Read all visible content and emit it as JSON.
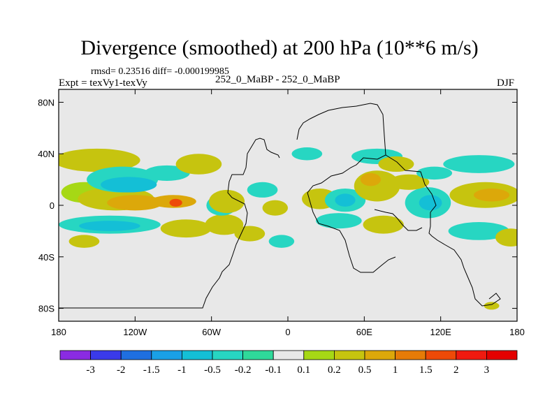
{
  "chart_data": {
    "type": "heatmap",
    "title": "Divergence (smoothed) at 200 hPa (10**6 m/s)",
    "stats_line": "rmsd= 0.23516 diff= -0.000199985",
    "experiment_label": "Expt = texVy1-texVy",
    "case_label": "252_0_MaBP - 252_0_MaBP",
    "season": "DJF",
    "xlim": [
      -180,
      180
    ],
    "ylim": [
      -90,
      90
    ],
    "x_ticks": [
      {
        "value": -180,
        "label": "180"
      },
      {
        "value": -120,
        "label": "120W"
      },
      {
        "value": -60,
        "label": "60W"
      },
      {
        "value": 0,
        "label": "0"
      },
      {
        "value": 60,
        "label": "60E"
      },
      {
        "value": 120,
        "label": "120E"
      },
      {
        "value": 180,
        "label": "180"
      }
    ],
    "y_ticks": [
      {
        "value": 80,
        "label": "80N"
      },
      {
        "value": 40,
        "label": "40N"
      },
      {
        "value": 0,
        "label": "0"
      },
      {
        "value": -40,
        "label": "40S"
      },
      {
        "value": -80,
        "label": "80S"
      }
    ],
    "levels": [
      "-3",
      "-2",
      "-1.5",
      "-1",
      "-0.5",
      "-0.2",
      "-0.1",
      "0.1",
      "0.2",
      "0.5",
      "1",
      "1.5",
      "2",
      "3"
    ],
    "colors": [
      "#8a2be2",
      "#3a3aea",
      "#1f6fe0",
      "#1aa0e6",
      "#14bfd6",
      "#27d6c2",
      "#2fd99a",
      "#e8e8e8",
      "#a6d815",
      "#c6c40f",
      "#dca80a",
      "#e67b07",
      "#ee4a08",
      "#f01a10",
      "#e40000"
    ],
    "background_color": "#e8e8e8",
    "anomalies": [
      {
        "lon": -160,
        "lat": 10,
        "rx": 18,
        "ry": 8,
        "value": 0.15
      },
      {
        "lon": -135,
        "lat": 5,
        "rx": 30,
        "ry": 9,
        "value": 0.3
      },
      {
        "lon": -120,
        "lat": 2,
        "rx": 22,
        "ry": 6,
        "value": 0.6
      },
      {
        "lon": -90,
        "lat": 3,
        "rx": 18,
        "ry": 5,
        "value": 0.7
      },
      {
        "lon": -88,
        "lat": 2,
        "rx": 5,
        "ry": 3,
        "value": 1.6
      },
      {
        "lon": -150,
        "lat": 35,
        "rx": 34,
        "ry": 9,
        "value": 0.3
      },
      {
        "lon": -130,
        "lat": 20,
        "rx": 28,
        "ry": 10,
        "value": -0.25
      },
      {
        "lon": -125,
        "lat": 16,
        "rx": 22,
        "ry": 6,
        "value": -0.55
      },
      {
        "lon": -95,
        "lat": 25,
        "rx": 18,
        "ry": 6,
        "value": -0.3
      },
      {
        "lon": -70,
        "lat": 32,
        "rx": 18,
        "ry": 8,
        "value": 0.3
      },
      {
        "lon": -140,
        "lat": -15,
        "rx": 40,
        "ry": 7,
        "value": -0.3
      },
      {
        "lon": -140,
        "lat": -16,
        "rx": 24,
        "ry": 4,
        "value": -0.6
      },
      {
        "lon": -160,
        "lat": -28,
        "rx": 12,
        "ry": 5,
        "value": 0.2
      },
      {
        "lon": -80,
        "lat": -18,
        "rx": 20,
        "ry": 7,
        "value": 0.25
      },
      {
        "lon": -50,
        "lat": -15,
        "rx": 15,
        "ry": 8,
        "value": 0.3
      },
      {
        "lon": -52,
        "lat": 0,
        "rx": 12,
        "ry": 8,
        "value": -0.3
      },
      {
        "lon": -52,
        "lat": 0,
        "rx": 6,
        "ry": 4,
        "value": -0.7
      },
      {
        "lon": -48,
        "lat": 3,
        "rx": 14,
        "ry": 9,
        "value": 0.2
      },
      {
        "lon": -20,
        "lat": 12,
        "rx": 12,
        "ry": 6,
        "value": -0.25
      },
      {
        "lon": -10,
        "lat": -2,
        "rx": 10,
        "ry": 6,
        "value": 0.3
      },
      {
        "lon": -30,
        "lat": -22,
        "rx": 12,
        "ry": 6,
        "value": 0.25
      },
      {
        "lon": -5,
        "lat": -28,
        "rx": 10,
        "ry": 5,
        "value": -0.25
      },
      {
        "lon": 15,
        "lat": 40,
        "rx": 12,
        "ry": 5,
        "value": -0.25
      },
      {
        "lon": 25,
        "lat": 5,
        "rx": 14,
        "ry": 8,
        "value": 0.35
      },
      {
        "lon": 45,
        "lat": 4,
        "rx": 16,
        "ry": 9,
        "value": -0.3
      },
      {
        "lon": 45,
        "lat": 4,
        "rx": 8,
        "ry": 5,
        "value": -0.7
      },
      {
        "lon": 40,
        "lat": -12,
        "rx": 18,
        "ry": 6,
        "value": -0.35
      },
      {
        "lon": 70,
        "lat": 15,
        "rx": 18,
        "ry": 12,
        "value": 0.3
      },
      {
        "lon": 65,
        "lat": 20,
        "rx": 8,
        "ry": 5,
        "value": 0.8
      },
      {
        "lon": 70,
        "lat": 38,
        "rx": 20,
        "ry": 6,
        "value": -0.25
      },
      {
        "lon": 75,
        "lat": -15,
        "rx": 16,
        "ry": 7,
        "value": 0.4
      },
      {
        "lon": 110,
        "lat": 2,
        "rx": 18,
        "ry": 12,
        "value": -0.4
      },
      {
        "lon": 112,
        "lat": 2,
        "rx": 9,
        "ry": 6,
        "value": -0.9
      },
      {
        "lon": 95,
        "lat": 18,
        "rx": 16,
        "ry": 6,
        "value": 0.3
      },
      {
        "lon": 115,
        "lat": 25,
        "rx": 14,
        "ry": 5,
        "value": -0.25
      },
      {
        "lon": 85,
        "lat": 32,
        "rx": 14,
        "ry": 6,
        "value": 0.25
      },
      {
        "lon": 150,
        "lat": 32,
        "rx": 28,
        "ry": 7,
        "value": -0.3
      },
      {
        "lon": 155,
        "lat": 8,
        "rx": 28,
        "ry": 10,
        "value": 0.4
      },
      {
        "lon": 160,
        "lat": 8,
        "rx": 14,
        "ry": 5,
        "value": 0.8
      },
      {
        "lon": 150,
        "lat": -20,
        "rx": 24,
        "ry": 7,
        "value": -0.3
      },
      {
        "lon": 175,
        "lat": -25,
        "rx": 12,
        "ry": 7,
        "value": 0.25
      },
      {
        "lon": 160,
        "lat": -78,
        "rx": 6,
        "ry": 3,
        "value": 0.25
      }
    ]
  }
}
